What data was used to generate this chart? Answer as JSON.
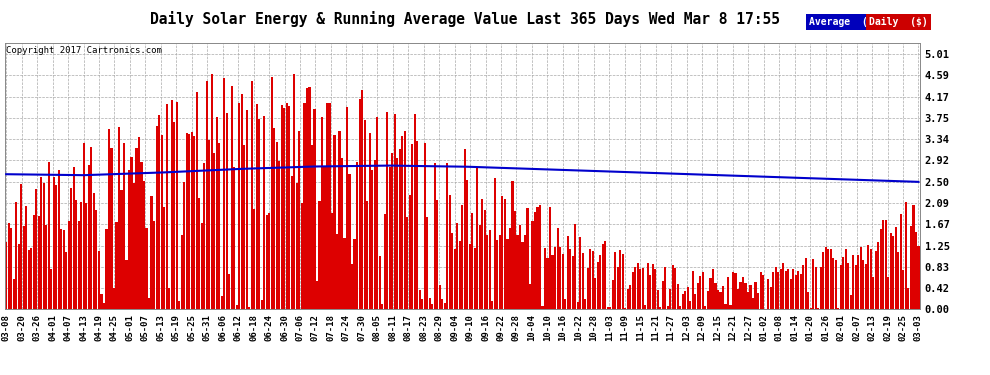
{
  "title": "Daily Solar Energy & Running Average Value Last 365 Days Wed Mar 8 17:55",
  "copyright": "Copyright 2017 Cartronics.com",
  "yticks": [
    0.0,
    0.42,
    0.83,
    1.25,
    1.67,
    2.09,
    2.5,
    2.92,
    3.34,
    3.75,
    4.17,
    4.59,
    5.01
  ],
  "ylim": [
    0.0,
    5.22
  ],
  "bar_color": "#dd0000",
  "avg_color": "#0000cc",
  "background_color": "#ffffff",
  "grid_color": "#aaaaaa",
  "legend_avg_bg": "#0000bb",
  "legend_daily_bg": "#cc0000",
  "legend_avg_text": "Average  ($)",
  "legend_daily_text": "Daily  ($)",
  "n_days": 365,
  "avg_control_points": [
    2.65,
    2.63,
    2.68,
    2.75,
    2.8,
    2.82,
    2.8,
    2.75,
    2.7,
    2.65,
    2.6,
    2.55,
    2.5
  ],
  "x_tick_labels": [
    "03-08",
    "03-20",
    "03-26",
    "04-01",
    "04-07",
    "04-13",
    "04-19",
    "04-25",
    "05-01",
    "05-07",
    "05-13",
    "05-19",
    "05-25",
    "05-31",
    "06-06",
    "06-12",
    "06-18",
    "06-24",
    "06-30",
    "07-06",
    "07-12",
    "07-18",
    "07-24",
    "07-30",
    "08-05",
    "08-11",
    "08-17",
    "08-23",
    "08-29",
    "09-04",
    "09-10",
    "09-16",
    "09-22",
    "09-28",
    "10-04",
    "10-10",
    "10-16",
    "10-22",
    "10-28",
    "11-03",
    "11-09",
    "11-15",
    "11-21",
    "11-27",
    "12-03",
    "12-09",
    "12-15",
    "12-21",
    "12-27",
    "01-02",
    "01-08",
    "01-14",
    "01-20",
    "01-26",
    "02-01",
    "02-07",
    "02-13",
    "02-19",
    "02-25",
    "03-03"
  ],
  "seed": 12345
}
